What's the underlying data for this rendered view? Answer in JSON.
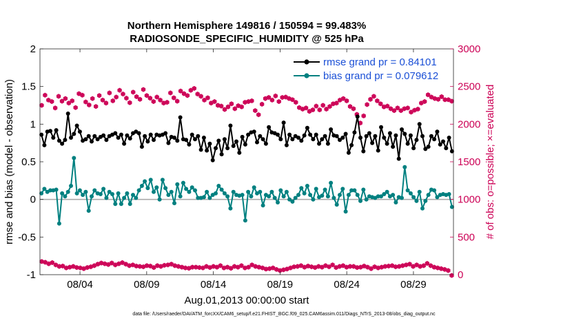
{
  "chart_data": {
    "type": "line",
    "title_line1": "Northern Hemisphere 149816 / 150594 = 99.483%",
    "title_line2": "RADIOSONDE_SPECIFIC_HUMIDITY @ 525 hPa",
    "xlabel": "Aug.01,2013 00:00:00 start",
    "ylabel": "rmse and bias (model - observation)",
    "ylabel_right": "# of obs: o=possible; ×=evaluated",
    "footnote": "data file: /Users/raeder/DAI/ATM_forcXX/CAM6_setup/f.e21.FHIST_BGC.f09_025.CAM6assim.011/Diags_NTrS_2013-08/obs_diag_output.nc",
    "x_start_day": 1,
    "x_end_day": 32,
    "x_ticks": [
      {
        "day": 4,
        "label": "08/04"
      },
      {
        "day": 9,
        "label": "08/09"
      },
      {
        "day": 14,
        "label": "08/14"
      },
      {
        "day": 19,
        "label": "08/19"
      },
      {
        "day": 24,
        "label": "08/24"
      },
      {
        "day": 29,
        "label": "08/29"
      }
    ],
    "ylim": [
      -1,
      2
    ],
    "y_ticks": [
      {
        "v": -1,
        "label": "-1"
      },
      {
        "v": -0.5,
        "label": "-0.5"
      },
      {
        "v": 0,
        "label": "0"
      },
      {
        "v": 0.5,
        "label": "0.5"
      },
      {
        "v": 1,
        "label": "1"
      },
      {
        "v": 1.5,
        "label": "1.5"
      },
      {
        "v": 2,
        "label": "2"
      }
    ],
    "ylim_right": [
      0,
      3000
    ],
    "y_right_ticks": [
      {
        "v": 0,
        "label": "0"
      },
      {
        "v": 500,
        "label": "500"
      },
      {
        "v": 1000,
        "label": "1000"
      },
      {
        "v": 1500,
        "label": "1500"
      },
      {
        "v": 2000,
        "label": "2000"
      },
      {
        "v": 2500,
        "label": "2500"
      },
      {
        "v": 3000,
        "label": "3000"
      }
    ],
    "colors": {
      "rmse": "#000000",
      "bias": "#008080",
      "obs": "#cc0055",
      "zero_line": "#aaaaaa",
      "legend_text": "#1a4fd6"
    },
    "legend": [
      "rmse grand pr = 0.84101",
      "bias grand pr = 0.079612"
    ],
    "series": [
      {
        "name": "rmse grand pr = 0.84101",
        "axis": "left",
        "values": [
          0.86,
          0.72,
          0.9,
          0.91,
          0.82,
          0.92,
          0.78,
          0.74,
          0.79,
          1.14,
          0.82,
          0.87,
          0.98,
          0.9,
          0.78,
          0.8,
          0.84,
          0.77,
          0.84,
          0.8,
          0.83,
          0.85,
          0.79,
          0.84,
          0.86,
          0.88,
          0.82,
          0.86,
          0.74,
          0.85,
          0.81,
          0.88,
          0.9,
          0.88,
          0.7,
          0.84,
          0.77,
          0.86,
          0.79,
          0.86,
          0.85,
          0.86,
          0.88,
          0.75,
          0.83,
          0.82,
          0.78,
          1.09,
          0.8,
          0.79,
          0.73,
          0.86,
          0.8,
          0.84,
          0.66,
          0.82,
          0.65,
          0.74,
          0.52,
          0.68,
          0.78,
          0.6,
          0.8,
          0.68,
          0.98,
          0.71,
          0.77,
          0.62,
          0.83,
          0.73,
          0.86,
          0.89,
          0.9,
          0.76,
          0.84,
          0.8,
          0.74,
          0.96,
          0.89,
          0.88,
          0.86,
          0.8,
          1.02,
          0.72,
          0.86,
          0.8,
          0.84,
          0.82,
          0.78,
          0.85,
          0.95,
          0.86,
          0.8,
          0.86,
          0.74,
          0.8,
          0.84,
          0.74,
          0.93,
          0.85,
          0.84,
          0.79,
          0.82,
          0.87,
          0.62,
          0.72,
          0.89,
          1.1,
          0.82,
          0.64,
          0.84,
          0.88,
          0.75,
          0.84,
          0.65,
          0.96,
          0.82,
          0.74,
          0.88,
          0.7,
          0.85,
          0.54,
          0.93,
          0.87,
          0.74,
          0.85,
          0.68,
          0.79,
          1.0,
          0.84,
          0.67,
          0.7,
          0.84,
          0.8,
          0.9,
          0.73,
          0.77,
          0.68,
          0.82,
          0.64
        ]
      },
      {
        "name": "bias grand pr = 0.079612",
        "axis": "left",
        "values": [
          0.08,
          0.14,
          0.1,
          0.12,
          0.12,
          0.13,
          -0.32,
          0.08,
          0.04,
          0.1,
          0.18,
          0.55,
          0.08,
          0.12,
          0.06,
          0.1,
          -0.15,
          0.04,
          0.12,
          0.08,
          0.07,
          0.14,
          0.02,
          0.1,
          0.07,
          -0.06,
          0.08,
          -0.06,
          0.02,
          0.08,
          -0.06,
          0.06,
          0.02,
          0.12,
          0.18,
          0.24,
          0.15,
          0.26,
          0.1,
          0.16,
          0.0,
          0.26,
          0.15,
          0.06,
          0.1,
          -0.05,
          0.2,
          0.04,
          0.22,
          0.14,
          0.1,
          0.16,
          0.12,
          0.02,
          0.02,
          0.03,
          0.1,
          0.02,
          0.06,
          0.08,
          0.18,
          0.13,
          0.08,
          0.04,
          -0.12,
          0.1,
          0.06,
          0.05,
          0.06,
          -0.28,
          0.1,
          0.04,
          0.16,
          0.08,
          0.1,
          -0.08,
          0.06,
          0.04,
          0.1,
          0.02,
          -0.04,
          0.12,
          0.04,
          0.1,
          0.0,
          -0.03,
          0.02,
          0.06,
          0.15,
          0.08,
          0.18,
          0.06,
          0.0,
          0.14,
          0.03,
          0.05,
          0.13,
          0.04,
          0.22,
          0.02,
          -0.07,
          0.06,
          0.14,
          -0.16,
          0.06,
          0.12,
          0.12,
          0.06,
          -0.02,
          0.13,
          0.0,
          0.04,
          0.03,
          0.02,
          0.04,
          0.04,
          0.07,
          0.1,
          0.04,
          0.06,
          -0.04,
          0.03,
          0.02,
          0.43,
          0.12,
          0.08,
          0.03,
          -0.02,
          0.1,
          -0.12,
          -0.02,
          0.06,
          0.13,
          0.12,
          0.03,
          0.06,
          0.07,
          0.06,
          0.07,
          -0.1
        ]
      },
      {
        "name": "obs-possible-main",
        "axis": "right",
        "values": [
          2250,
          2385,
          2320,
          2300,
          2215,
          2370,
          2305,
          2340,
          2280,
          2310,
          2220,
          2405,
          2385,
          2295,
          2255,
          2340,
          2235,
          2380,
          2320,
          2280,
          2415,
          2310,
          2360,
          2450,
          2400,
          2345,
          2285,
          2425,
          2365,
          2330,
          2460,
          2380,
          2345,
          2300,
          2360,
          2320,
          2280,
          2290,
          2415,
          2350,
          2305,
          2440,
          2405,
          2380,
          2450,
          2475,
          2400,
          2370,
          2320,
          2350,
          2280,
          2300,
          2250,
          2240,
          2195,
          2230,
          2270,
          2205,
          2245,
          2230,
          2290,
          2300,
          2310,
          2180,
          2125,
          2265,
          2340,
          2355,
          2320,
          2375,
          2300,
          2355,
          2360,
          2340,
          2325,
          2290,
          2220,
          2200,
          2215,
          2170,
          2190,
          2240,
          2190,
          2250,
          2200,
          2235,
          2270,
          2280,
          2320,
          2340,
          2310,
          2235,
          2205,
          2130,
          2015,
          2110,
          2260,
          2330,
          2370,
          2310,
          2270,
          2230,
          2240,
          2205,
          2180,
          2215,
          2180,
          2205,
          2215,
          2160,
          2185,
          2200,
          2280,
          2300,
          2390,
          2360,
          2340,
          2330,
          2365,
          2325,
          2325,
          2305
        ]
      },
      {
        "name": "obs-possible-low",
        "axis": "right",
        "values": [
          175,
          165,
          145,
          160,
          130,
          110,
          115,
          90,
          100,
          110,
          95,
          90,
          80,
          95,
          105,
          120,
          140,
          155,
          145,
          135,
          155,
          130,
          145,
          160,
          140,
          120,
          130,
          115,
          110,
          105,
          120,
          115,
          95,
          120,
          110,
          125,
          130,
          140,
          120,
          110,
          100,
          90,
          85,
          100,
          100,
          95,
          90,
          110,
          95,
          110,
          100,
          120,
          90,
          100,
          85,
          110,
          100,
          120,
          90,
          100,
          130,
          110,
          100,
          90,
          75,
          80,
          90,
          70,
          55,
          65,
          75,
          90,
          105,
          110,
          120,
          100,
          115,
          105,
          95,
          110,
          100,
          120,
          105,
          130,
          95,
          110,
          120,
          100,
          110,
          110,
          95,
          100,
          115,
          100,
          80,
          105,
          90,
          100,
          110,
          115,
          120,
          105,
          110,
          120,
          130,
          140,
          110,
          130,
          110,
          120,
          150,
          120,
          100,
          90,
          80,
          70,
          55,
          -10
        ]
      }
    ]
  }
}
